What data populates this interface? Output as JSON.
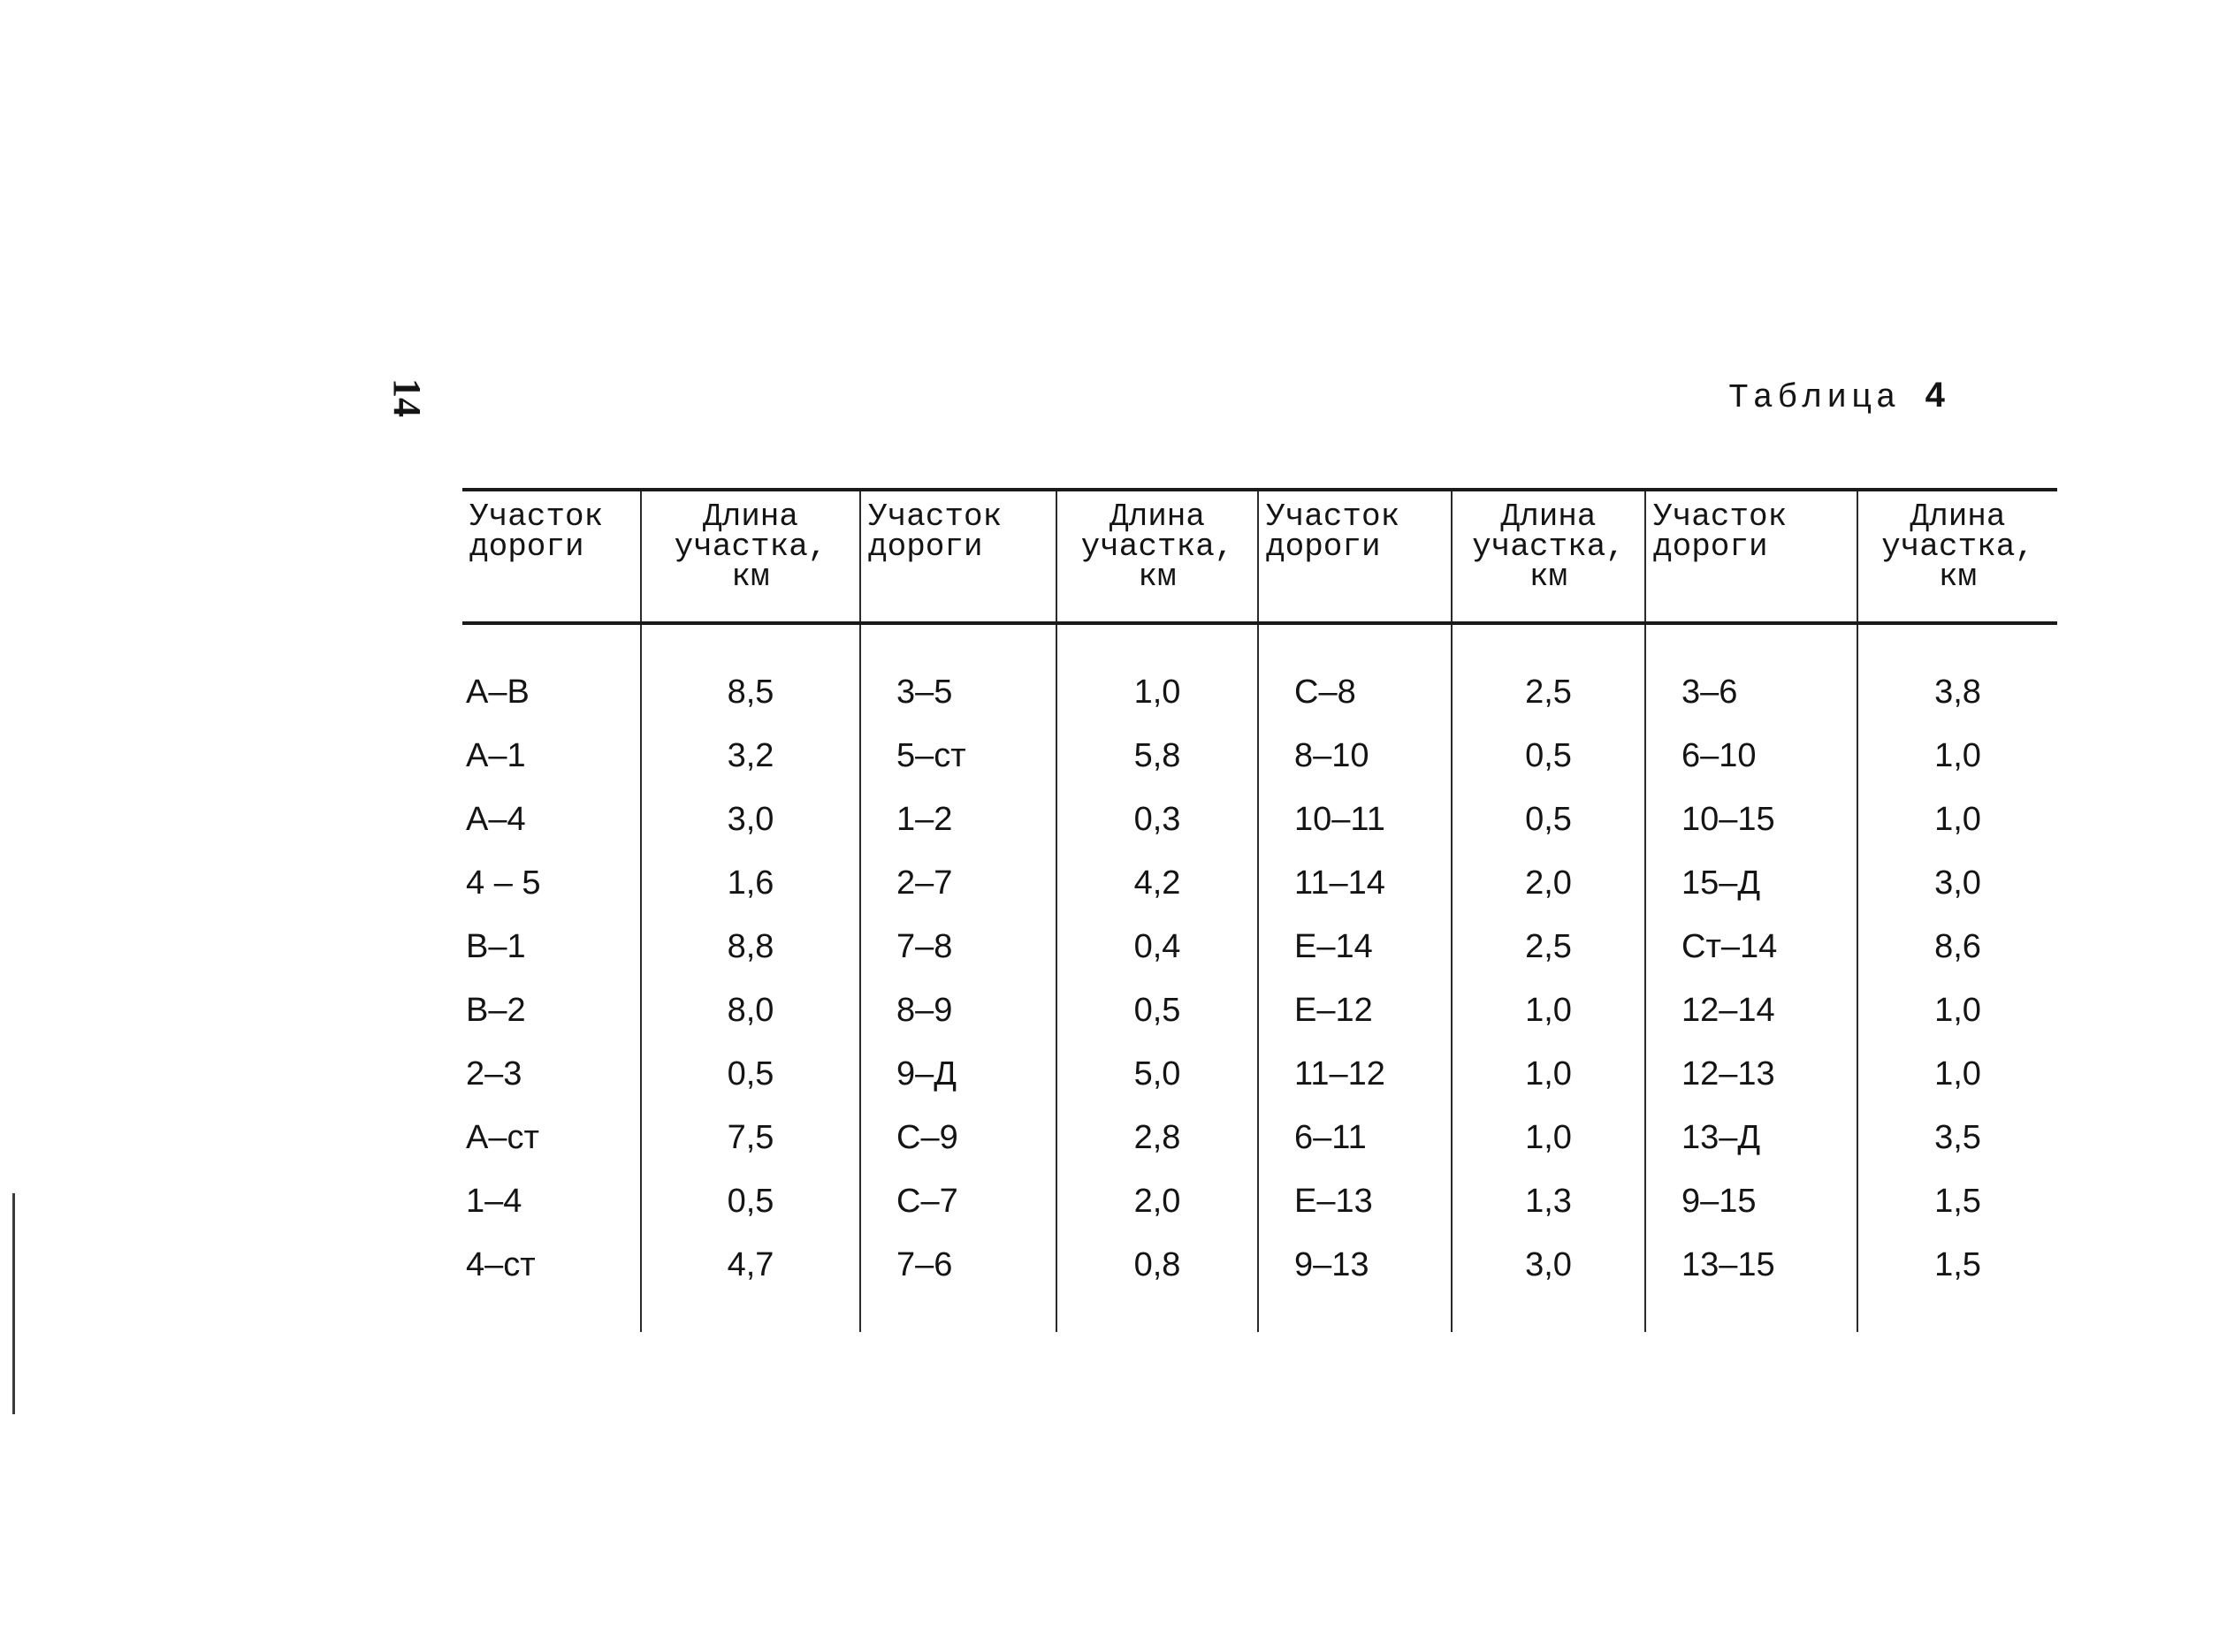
{
  "page_number": "14",
  "table": {
    "caption_word": "Таблица",
    "caption_number": "4",
    "headers": [
      "Участок\nдороги",
      "Длина\nучастка,\nкм",
      "Участок\nдороги",
      "Длина\nучастка,\nкм",
      "Участок\nдороги",
      "Длина\nучастка,\nкм",
      "Участок\nдороги",
      "Длина\nучастка,\nкм"
    ],
    "rows": [
      [
        "А–В",
        "8,5",
        "3–5",
        "1,0",
        "С–8",
        "2,5",
        "3–6",
        "3,8"
      ],
      [
        "А–1",
        "3,2",
        "5–ст",
        "5,8",
        "8–10",
        "0,5",
        "6–10",
        "1,0"
      ],
      [
        "А–4",
        "3,0",
        "1–2",
        "0,3",
        "10–11",
        "0,5",
        "10–15",
        "1,0"
      ],
      [
        "4 – 5",
        "1,6",
        "2–7",
        "4,2",
        "11–14",
        "2,0",
        "15–Д",
        "3,0"
      ],
      [
        "В–1",
        "8,8",
        "7–8",
        "0,4",
        "Е–14",
        "2,5",
        "Ст–14",
        "8,6"
      ],
      [
        "В–2",
        "8,0",
        "8–9",
        "0,5",
        "Е–12",
        "1,0",
        "12–14",
        "1,0"
      ],
      [
        "2–3",
        "0,5",
        "9–Д",
        "5,0",
        "11–12",
        "1,0",
        "12–13",
        "1,0"
      ],
      [
        "А–ст",
        "7,5",
        "С–9",
        "2,8",
        "6–11",
        "1,0",
        "13–Д",
        "3,5"
      ],
      [
        "1–4",
        "0,5",
        "С–7",
        "2,0",
        "Е–13",
        "1,3",
        "9–15",
        "1,5"
      ],
      [
        "4–ст",
        "4,7",
        "7–6",
        "0,8",
        "9–13",
        "3,0",
        "13–15",
        "1,5"
      ]
    ]
  }
}
